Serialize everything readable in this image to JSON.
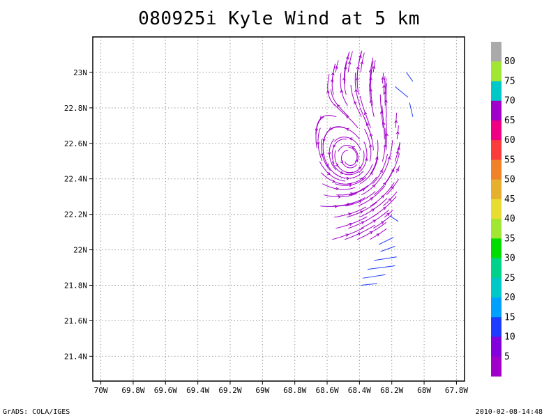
{
  "chart_data": {
    "type": "streamline",
    "title": "080925i Kyle Wind at 5 km",
    "x_ticks": [
      "70W",
      "69.8W",
      "69.6W",
      "69.4W",
      "69.2W",
      "69W",
      "68.8W",
      "68.6W",
      "68.4W",
      "68.2W",
      "68W",
      "67.8W"
    ],
    "x_tick_values": [
      -70,
      -69.8,
      -69.6,
      -69.4,
      -69.2,
      -69.0,
      -68.8,
      -68.6,
      -68.4,
      -68.2,
      -68.0,
      -67.8
    ],
    "y_ticks": [
      "21.4N",
      "21.6N",
      "21.8N",
      "22N",
      "22.2N",
      "22.4N",
      "22.6N",
      "22.8N",
      "23N"
    ],
    "y_tick_values": [
      21.4,
      21.6,
      21.8,
      22.0,
      22.2,
      22.4,
      22.6,
      22.8,
      23.0
    ],
    "xlim": [
      -70.05,
      -67.75
    ],
    "ylim": [
      21.26,
      23.2
    ],
    "grid": true,
    "vortex_center": {
      "lon": -68.45,
      "lat": 22.5
    },
    "colorbar": {
      "labels": [
        "5",
        "10",
        "15",
        "20",
        "25",
        "30",
        "35",
        "40",
        "45",
        "50",
        "55",
        "60",
        "65",
        "70",
        "75",
        "80"
      ],
      "colors": [
        "#a000c8",
        "#8200dc",
        "#1e3cff",
        "#00a0ff",
        "#00c8c8",
        "#00d28c",
        "#00dc00",
        "#a0e632",
        "#e6dc32",
        "#e6af2d",
        "#f08228",
        "#fa3c3c",
        "#f00082",
        "#a000c8",
        "#00c8c8",
        "#a0e632",
        "#aaaaaa"
      ]
    }
  },
  "footer": {
    "left": "GrADS: COLA/IGES",
    "right": "2010-02-08-14:48"
  }
}
